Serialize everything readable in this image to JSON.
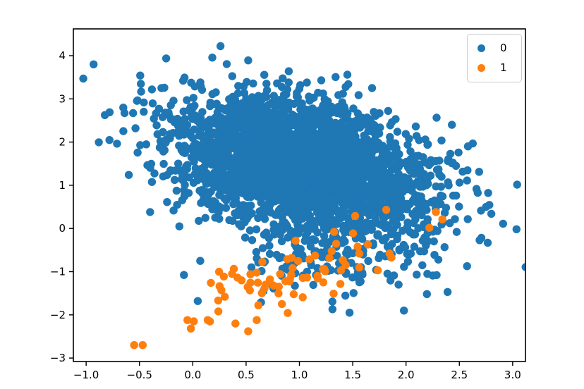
{
  "page": {
    "background": "#ffffff"
  },
  "chart_data": {
    "type": "scatter",
    "title": "",
    "xlabel": "",
    "ylabel": "",
    "grid": false,
    "frame_color": "#000000",
    "tick_color": "#000000",
    "tick_label_color": "#000000",
    "xlim": [
      -1.12,
      3.12
    ],
    "ylim": [
      -3.08,
      4.62
    ],
    "xticks": [
      {
        "v": -1.0,
        "label": "−1.0"
      },
      {
        "v": -0.5,
        "label": "−0.5"
      },
      {
        "v": 0.0,
        "label": "0.0"
      },
      {
        "v": 0.5,
        "label": "0.5"
      },
      {
        "v": 1.0,
        "label": "1.0"
      },
      {
        "v": 1.5,
        "label": "1.5"
      },
      {
        "v": 2.0,
        "label": "2.0"
      },
      {
        "v": 2.5,
        "label": "2.5"
      },
      {
        "v": 3.0,
        "label": "3.0"
      }
    ],
    "yticks": [
      {
        "v": -3,
        "label": "−3"
      },
      {
        "v": -2,
        "label": "−2"
      },
      {
        "v": -1,
        "label": "−1"
      },
      {
        "v": 0,
        "label": "0"
      },
      {
        "v": 1,
        "label": "1"
      },
      {
        "v": 2,
        "label": "2"
      },
      {
        "v": 3,
        "label": "3"
      },
      {
        "v": 4,
        "label": "4"
      }
    ],
    "legend": {
      "position": "upper right",
      "entries": [
        {
          "label": "0",
          "color": "#1f77b4"
        },
        {
          "label": "1",
          "color": "#ff7f0e"
        }
      ]
    },
    "series": [
      {
        "label": "0",
        "color": "#1f77b4",
        "marker_radius_px": 5.7,
        "clusters": [
          {
            "n": 3000,
            "center": [
              1.0,
              1.48
            ],
            "std": [
              0.6,
              0.76
            ],
            "corr": -0.34,
            "seed": 42
          },
          {
            "n": 170,
            "center": [
              1.35,
              -0.55
            ],
            "std": [
              0.5,
              0.52
            ],
            "corr": 0.15,
            "seed": 77
          }
        ],
        "points": [
          [
            -0.93,
            3.8
          ],
          [
            0.26,
            4.22
          ],
          [
            0.52,
            3.89
          ],
          [
            0.9,
            3.64
          ],
          [
            1.45,
            3.56
          ],
          [
            -0.78,
            2.69
          ],
          [
            -0.64,
            2.67
          ],
          [
            -0.56,
            2.67
          ],
          [
            -0.6,
            1.24
          ],
          [
            -0.4,
            0.38
          ],
          [
            0.07,
            -0.75
          ],
          [
            2.43,
            2.4
          ],
          [
            2.43,
            1.51
          ],
          [
            2.47,
            0.76
          ],
          [
            2.75,
            0.5
          ],
          [
            2.8,
            0.34
          ],
          [
            2.91,
            0.11
          ],
          [
            2.69,
            -0.27
          ],
          [
            2.39,
            -1.47
          ],
          [
            1.98,
            -1.9
          ],
          [
            1.47,
            -1.95
          ],
          [
            1.31,
            -1.87
          ],
          [
            0.64,
            -1.71
          ],
          [
            1.93,
            -1.3
          ],
          [
            2.2,
            -1.05
          ]
        ]
      },
      {
        "label": "1",
        "color": "#ff7f0e",
        "marker_radius_px": 5.7,
        "clusters": [
          {
            "n": 72,
            "center": [
              0.95,
              -1.02
            ],
            "std": [
              0.46,
              0.55
            ],
            "corr": 0.7,
            "seed": 7
          }
        ],
        "points": [
          [
            -0.55,
            -2.7
          ],
          [
            -0.47,
            -2.7
          ],
          [
            2.28,
            0.38
          ],
          [
            0.01,
            -2.15
          ],
          [
            0.14,
            -2.12
          ],
          [
            -0.05,
            -2.12
          ],
          [
            0.17,
            -1.26
          ],
          [
            0.3,
            -1.58
          ],
          [
            0.24,
            -1.92
          ],
          [
            0.4,
            -2.2
          ],
          [
            0.52,
            -2.38
          ],
          [
            0.6,
            -2.12
          ]
        ]
      }
    ]
  }
}
